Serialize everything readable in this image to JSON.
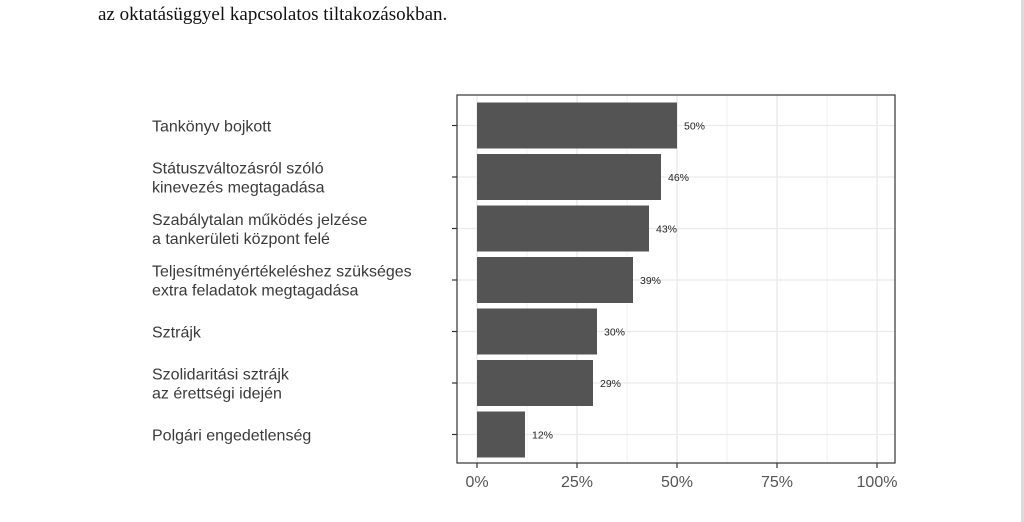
{
  "document": {
    "text_line": "az oktatásüggyel kapcsolatos tiltakozásokban."
  },
  "chart_data": {
    "type": "bar",
    "orientation": "horizontal",
    "title": "",
    "xlabel": "",
    "ylabel": "",
    "categories": [
      [
        "Tankönyv bojkott"
      ],
      [
        "Státuszváltozásról szóló",
        "kinevezés megtagadása"
      ],
      [
        "Szabálytalan működés jelzése",
        "a tankerületi központ felé"
      ],
      [
        "Teljesítményértékeléshez szükséges",
        "extra feladatok megtagadása"
      ],
      [
        "Sztrájk"
      ],
      [
        "Szolidaritási sztrájk",
        "az érettségi idején"
      ],
      [
        "Polgári engedetlenség"
      ]
    ],
    "values": [
      50,
      46,
      43,
      39,
      30,
      29,
      12
    ],
    "value_labels": [
      "50%",
      "46%",
      "43%",
      "39%",
      "30%",
      "29%",
      "12%"
    ],
    "xlim": [
      0,
      100
    ],
    "xticks": [
      0,
      25,
      50,
      75,
      100
    ],
    "xtick_labels": [
      "0%",
      "25%",
      "50%",
      "75%",
      "100%"
    ],
    "grid": true,
    "bar_color": "#545454",
    "legend": "none"
  }
}
